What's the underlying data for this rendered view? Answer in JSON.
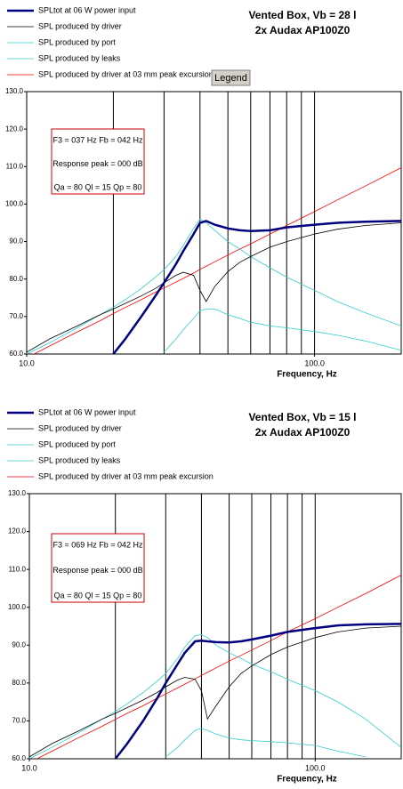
{
  "chart_data": [
    {
      "type": "line",
      "title": [
        "Vented Box, Vb = 28 l",
        "2x Audax AP100Z0"
      ],
      "legend_button": "Legend",
      "annotation": [
        "F3 = 037 Hz  Fb = 042 Hz",
        "Response peak = 000 dB",
        "Qa = 80  Ql = 15  Qp = 80"
      ],
      "xlabel": "Frequency, Hz",
      "log_x": true,
      "xlim": [
        10,
        200
      ],
      "xticks": [
        {
          "value": 10,
          "label": "10.0"
        },
        {
          "value": 100,
          "label": "100.0"
        }
      ],
      "xgrid": [
        20,
        30,
        40,
        50,
        60,
        70,
        80,
        90
      ],
      "ylim": [
        60,
        130
      ],
      "yticks": [
        {
          "value": 60,
          "label": "60.0"
        },
        {
          "value": 70,
          "label": "70.0"
        },
        {
          "value": 80,
          "label": "80.0"
        },
        {
          "value": 90,
          "label": "90.0"
        },
        {
          "value": 100,
          "label": "100.0"
        },
        {
          "value": 110,
          "label": "110.0"
        },
        {
          "value": 120,
          "label": "120.0"
        },
        {
          "value": 130,
          "label": "130.0"
        }
      ],
      "x": [
        10,
        12,
        15,
        18,
        20,
        22,
        25,
        28,
        30,
        33,
        35,
        38,
        40,
        42,
        45,
        50,
        55,
        60,
        70,
        80,
        100,
        120,
        150,
        200
      ],
      "series": [
        {
          "name": "SPLtot at 06 W power input",
          "color": "#000080",
          "linewidth": 2.5,
          "values": [
            null,
            null,
            null,
            null,
            60,
            64,
            70,
            75.5,
            79,
            84,
            87.5,
            92,
            95,
            95.5,
            94.5,
            93.5,
            93,
            92.8,
            93,
            93.8,
            94.5,
            95,
            95.3,
            95.5
          ]
        },
        {
          "name": "SPL produced by driver",
          "color": "#000000",
          "linewidth": 0.8,
          "values": [
            60.5,
            64,
            67.5,
            70.5,
            72,
            73.5,
            75.5,
            77.5,
            79,
            81,
            81.8,
            81,
            77,
            74,
            78,
            82,
            84.5,
            86,
            88.5,
            90,
            92,
            93.3,
            94.3,
            95
          ]
        },
        {
          "name": "SPL produced by port",
          "color": "#33cccc",
          "linewidth": 0.8,
          "values": [
            60,
            63,
            67,
            70.5,
            72.5,
            74.5,
            77.5,
            80.5,
            82.5,
            86,
            89,
            93.5,
            96,
            95,
            93,
            90,
            88,
            86,
            83,
            80.5,
            77,
            74,
            71,
            67.5
          ]
        },
        {
          "name": "SPL produced by leaks",
          "color": "#33cccc",
          "linewidth": 0.8,
          "values": [
            null,
            null,
            null,
            null,
            null,
            null,
            null,
            null,
            60.5,
            64,
            66.5,
            69.5,
            71.5,
            72,
            72,
            70.5,
            69.5,
            68.5,
            67.5,
            67,
            66,
            65,
            63.5,
            61
          ]
        },
        {
          "name": "SPL produced by driver at 03 mm peak excursion",
          "color": "#ff0000",
          "linewidth": 0.8,
          "values": [
            59,
            62.1,
            65.9,
            68.9,
            70.8,
            72.4,
            74.5,
            76.5,
            77.6,
            79.2,
            80.2,
            81.6,
            82.6,
            83.4,
            84.6,
            86.4,
            88,
            89.4,
            92,
            94.3,
            98,
            101.1,
            104.8,
            109.7
          ]
        }
      ]
    },
    {
      "type": "line",
      "title": [
        "Vented Box, Vb = 15 l",
        "2x Audax AP100Z0"
      ],
      "annotation": [
        "F3 = 069 Hz  Fb = 042 Hz",
        "Response peak = 000 dB",
        "Qa = 80  Ql = 15  Qp = 80"
      ],
      "xlabel": "Frequency, Hz",
      "log_x": true,
      "xlim": [
        10,
        200
      ],
      "xticks": [
        {
          "value": 10,
          "label": "10.0"
        },
        {
          "value": 100,
          "label": "100.0"
        }
      ],
      "xgrid": [
        20,
        30,
        40,
        50,
        60,
        70,
        80,
        90
      ],
      "ylim": [
        60,
        130
      ],
      "yticks": [
        {
          "value": 60,
          "label": "60.0"
        },
        {
          "value": 70,
          "label": "70.0"
        },
        {
          "value": 80,
          "label": "80.0"
        },
        {
          "value": 90,
          "label": "90.0"
        },
        {
          "value": 100,
          "label": "100.0"
        },
        {
          "value": 110,
          "label": "110.0"
        },
        {
          "value": 120,
          "label": "120.0"
        },
        {
          "value": 130,
          "label": "130.0"
        }
      ],
      "x": [
        10,
        12,
        15,
        18,
        20,
        22,
        25,
        28,
        30,
        33,
        35,
        38,
        40,
        42,
        45,
        50,
        55,
        60,
        70,
        80,
        100,
        120,
        150,
        200
      ],
      "series": [
        {
          "name": "SPLtot at 06 W power input",
          "color": "#000080",
          "linewidth": 2.5,
          "values": [
            null,
            null,
            null,
            null,
            60,
            64,
            70,
            76,
            80,
            85,
            88,
            91,
            91.2,
            91,
            90.8,
            90.7,
            91,
            91.5,
            92.5,
            93.5,
            94.5,
            95.2,
            95.5,
            95.6
          ]
        },
        {
          "name": "SPL produced by driver",
          "color": "#000000",
          "linewidth": 0.8,
          "values": [
            60.5,
            64,
            67.5,
            70.5,
            72,
            73.5,
            75.5,
            77.5,
            79,
            80.8,
            81.5,
            81,
            78,
            70.5,
            74,
            79,
            82.5,
            84.5,
            87.5,
            89.5,
            92,
            93.5,
            94.5,
            95
          ]
        },
        {
          "name": "SPL produced by port",
          "color": "#33cccc",
          "linewidth": 0.8,
          "values": [
            60,
            63,
            67,
            70.5,
            72.5,
            74.5,
            77.5,
            80.5,
            82.5,
            86.5,
            89.5,
            92.5,
            92.8,
            92,
            90,
            88,
            86.5,
            85,
            83,
            81,
            78,
            75,
            70.5,
            63
          ]
        },
        {
          "name": "SPL produced by leaks",
          "color": "#33cccc",
          "linewidth": 0.8,
          "values": [
            null,
            null,
            null,
            null,
            null,
            null,
            null,
            null,
            60.5,
            63,
            65,
            67.5,
            68,
            67.5,
            66.5,
            65.5,
            65,
            64.8,
            64.5,
            64.2,
            63.5,
            62,
            60.5,
            null
          ]
        },
        {
          "name": "SPL produced by driver at 03 mm peak excursion",
          "color": "#ff0000",
          "linewidth": 0.8,
          "values": [
            59,
            62,
            65.7,
            68.6,
            70.4,
            72,
            74,
            76,
            77.1,
            78.7,
            79.7,
            81.1,
            82,
            82.8,
            84,
            85.8,
            87.3,
            88.7,
            91.2,
            93.5,
            97,
            100,
            103.6,
            108.5
          ]
        }
      ]
    }
  ]
}
